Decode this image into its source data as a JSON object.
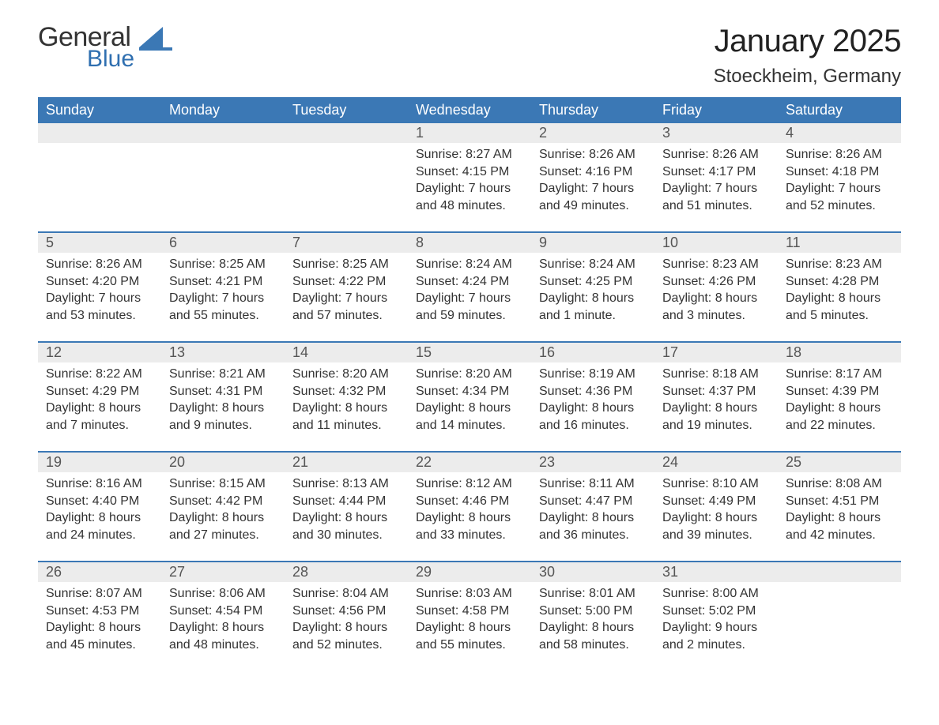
{
  "logo": {
    "text1": "General",
    "text2": "Blue",
    "color_general": "#333333",
    "color_blue": "#2f6fb0",
    "shape_color": "#3b78b5"
  },
  "title": "January 2025",
  "location": "Stoeckheim, Germany",
  "styling": {
    "header_bg": "#3b78b5",
    "header_text": "#ffffff",
    "daynum_bg": "#ececec",
    "daynum_text": "#555555",
    "body_text": "#333333",
    "background": "#ffffff",
    "sep_color": "#3b78b5",
    "title_fontsize": 40,
    "location_fontsize": 24,
    "weekday_fontsize": 18,
    "daynum_fontsize": 18,
    "cell_fontsize": 16
  },
  "weekdays": [
    "Sunday",
    "Monday",
    "Tuesday",
    "Wednesday",
    "Thursday",
    "Friday",
    "Saturday"
  ],
  "weeks": [
    {
      "nums": [
        "",
        "",
        "",
        "1",
        "2",
        "3",
        "4"
      ],
      "cells": [
        [],
        [],
        [],
        [
          "Sunrise: 8:27 AM",
          "Sunset: 4:15 PM",
          "Daylight: 7 hours",
          "and 48 minutes."
        ],
        [
          "Sunrise: 8:26 AM",
          "Sunset: 4:16 PM",
          "Daylight: 7 hours",
          "and 49 minutes."
        ],
        [
          "Sunrise: 8:26 AM",
          "Sunset: 4:17 PM",
          "Daylight: 7 hours",
          "and 51 minutes."
        ],
        [
          "Sunrise: 8:26 AM",
          "Sunset: 4:18 PM",
          "Daylight: 7 hours",
          "and 52 minutes."
        ]
      ]
    },
    {
      "nums": [
        "5",
        "6",
        "7",
        "8",
        "9",
        "10",
        "11"
      ],
      "cells": [
        [
          "Sunrise: 8:26 AM",
          "Sunset: 4:20 PM",
          "Daylight: 7 hours",
          "and 53 minutes."
        ],
        [
          "Sunrise: 8:25 AM",
          "Sunset: 4:21 PM",
          "Daylight: 7 hours",
          "and 55 minutes."
        ],
        [
          "Sunrise: 8:25 AM",
          "Sunset: 4:22 PM",
          "Daylight: 7 hours",
          "and 57 minutes."
        ],
        [
          "Sunrise: 8:24 AM",
          "Sunset: 4:24 PM",
          "Daylight: 7 hours",
          "and 59 minutes."
        ],
        [
          "Sunrise: 8:24 AM",
          "Sunset: 4:25 PM",
          "Daylight: 8 hours",
          "and 1 minute."
        ],
        [
          "Sunrise: 8:23 AM",
          "Sunset: 4:26 PM",
          "Daylight: 8 hours",
          "and 3 minutes."
        ],
        [
          "Sunrise: 8:23 AM",
          "Sunset: 4:28 PM",
          "Daylight: 8 hours",
          "and 5 minutes."
        ]
      ]
    },
    {
      "nums": [
        "12",
        "13",
        "14",
        "15",
        "16",
        "17",
        "18"
      ],
      "cells": [
        [
          "Sunrise: 8:22 AM",
          "Sunset: 4:29 PM",
          "Daylight: 8 hours",
          "and 7 minutes."
        ],
        [
          "Sunrise: 8:21 AM",
          "Sunset: 4:31 PM",
          "Daylight: 8 hours",
          "and 9 minutes."
        ],
        [
          "Sunrise: 8:20 AM",
          "Sunset: 4:32 PM",
          "Daylight: 8 hours",
          "and 11 minutes."
        ],
        [
          "Sunrise: 8:20 AM",
          "Sunset: 4:34 PM",
          "Daylight: 8 hours",
          "and 14 minutes."
        ],
        [
          "Sunrise: 8:19 AM",
          "Sunset: 4:36 PM",
          "Daylight: 8 hours",
          "and 16 minutes."
        ],
        [
          "Sunrise: 8:18 AM",
          "Sunset: 4:37 PM",
          "Daylight: 8 hours",
          "and 19 minutes."
        ],
        [
          "Sunrise: 8:17 AM",
          "Sunset: 4:39 PM",
          "Daylight: 8 hours",
          "and 22 minutes."
        ]
      ]
    },
    {
      "nums": [
        "19",
        "20",
        "21",
        "22",
        "23",
        "24",
        "25"
      ],
      "cells": [
        [
          "Sunrise: 8:16 AM",
          "Sunset: 4:40 PM",
          "Daylight: 8 hours",
          "and 24 minutes."
        ],
        [
          "Sunrise: 8:15 AM",
          "Sunset: 4:42 PM",
          "Daylight: 8 hours",
          "and 27 minutes."
        ],
        [
          "Sunrise: 8:13 AM",
          "Sunset: 4:44 PM",
          "Daylight: 8 hours",
          "and 30 minutes."
        ],
        [
          "Sunrise: 8:12 AM",
          "Sunset: 4:46 PM",
          "Daylight: 8 hours",
          "and 33 minutes."
        ],
        [
          "Sunrise: 8:11 AM",
          "Sunset: 4:47 PM",
          "Daylight: 8 hours",
          "and 36 minutes."
        ],
        [
          "Sunrise: 8:10 AM",
          "Sunset: 4:49 PM",
          "Daylight: 8 hours",
          "and 39 minutes."
        ],
        [
          "Sunrise: 8:08 AM",
          "Sunset: 4:51 PM",
          "Daylight: 8 hours",
          "and 42 minutes."
        ]
      ]
    },
    {
      "nums": [
        "26",
        "27",
        "28",
        "29",
        "30",
        "31",
        ""
      ],
      "cells": [
        [
          "Sunrise: 8:07 AM",
          "Sunset: 4:53 PM",
          "Daylight: 8 hours",
          "and 45 minutes."
        ],
        [
          "Sunrise: 8:06 AM",
          "Sunset: 4:54 PM",
          "Daylight: 8 hours",
          "and 48 minutes."
        ],
        [
          "Sunrise: 8:04 AM",
          "Sunset: 4:56 PM",
          "Daylight: 8 hours",
          "and 52 minutes."
        ],
        [
          "Sunrise: 8:03 AM",
          "Sunset: 4:58 PM",
          "Daylight: 8 hours",
          "and 55 minutes."
        ],
        [
          "Sunrise: 8:01 AM",
          "Sunset: 5:00 PM",
          "Daylight: 8 hours",
          "and 58 minutes."
        ],
        [
          "Sunrise: 8:00 AM",
          "Sunset: 5:02 PM",
          "Daylight: 9 hours",
          "and 2 minutes."
        ],
        []
      ]
    }
  ]
}
